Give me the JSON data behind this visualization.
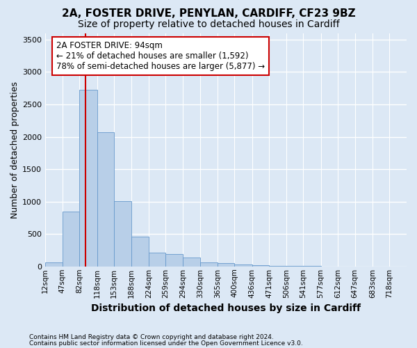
{
  "title1": "2A, FOSTER DRIVE, PENYLAN, CARDIFF, CF23 9BZ",
  "title2": "Size of property relative to detached houses in Cardiff",
  "xlabel": "Distribution of detached houses by size in Cardiff",
  "ylabel": "Number of detached properties",
  "footnote1": "Contains HM Land Registry data © Crown copyright and database right 2024.",
  "footnote2": "Contains public sector information licensed under the Open Government Licence v3.0.",
  "bar_labels": [
    "12sqm",
    "47sqm",
    "82sqm",
    "118sqm",
    "153sqm",
    "188sqm",
    "224sqm",
    "259sqm",
    "294sqm",
    "330sqm",
    "365sqm",
    "400sqm",
    "436sqm",
    "471sqm",
    "506sqm",
    "541sqm",
    "577sqm",
    "612sqm",
    "647sqm",
    "683sqm",
    "718sqm"
  ],
  "bar_values": [
    60,
    850,
    2730,
    2070,
    1010,
    460,
    215,
    195,
    140,
    65,
    55,
    35,
    15,
    8,
    5,
    3,
    2,
    1,
    1,
    1,
    1
  ],
  "bin_edges": [
    12,
    47,
    82,
    118,
    153,
    188,
    224,
    259,
    294,
    330,
    365,
    400,
    436,
    471,
    506,
    541,
    577,
    612,
    647,
    683,
    718,
    753
  ],
  "bar_color": "#b8cfe8",
  "bar_edge_color": "#6699cc",
  "property_sqm": 94,
  "red_line_x": 94,
  "property_label": "2A FOSTER DRIVE: 94sqm",
  "annotation_line1": "← 21% of detached houses are smaller (1,592)",
  "annotation_line2": "78% of semi-detached houses are larger (5,877) →",
  "red_line_color": "#cc0000",
  "annotation_box_facecolor": "#ffffff",
  "annotation_box_edgecolor": "#cc0000",
  "ylim": [
    0,
    3600
  ],
  "yticks": [
    0,
    500,
    1000,
    1500,
    2000,
    2500,
    3000,
    3500
  ],
  "axes_bg_color": "#dce8f5",
  "fig_bg_color": "#dce8f5",
  "grid_color": "#ffffff",
  "title1_fontsize": 11,
  "title2_fontsize": 10,
  "xlabel_fontsize": 10,
  "ylabel_fontsize": 9,
  "tick_fontsize": 7.5,
  "annot_fontsize": 8.5
}
